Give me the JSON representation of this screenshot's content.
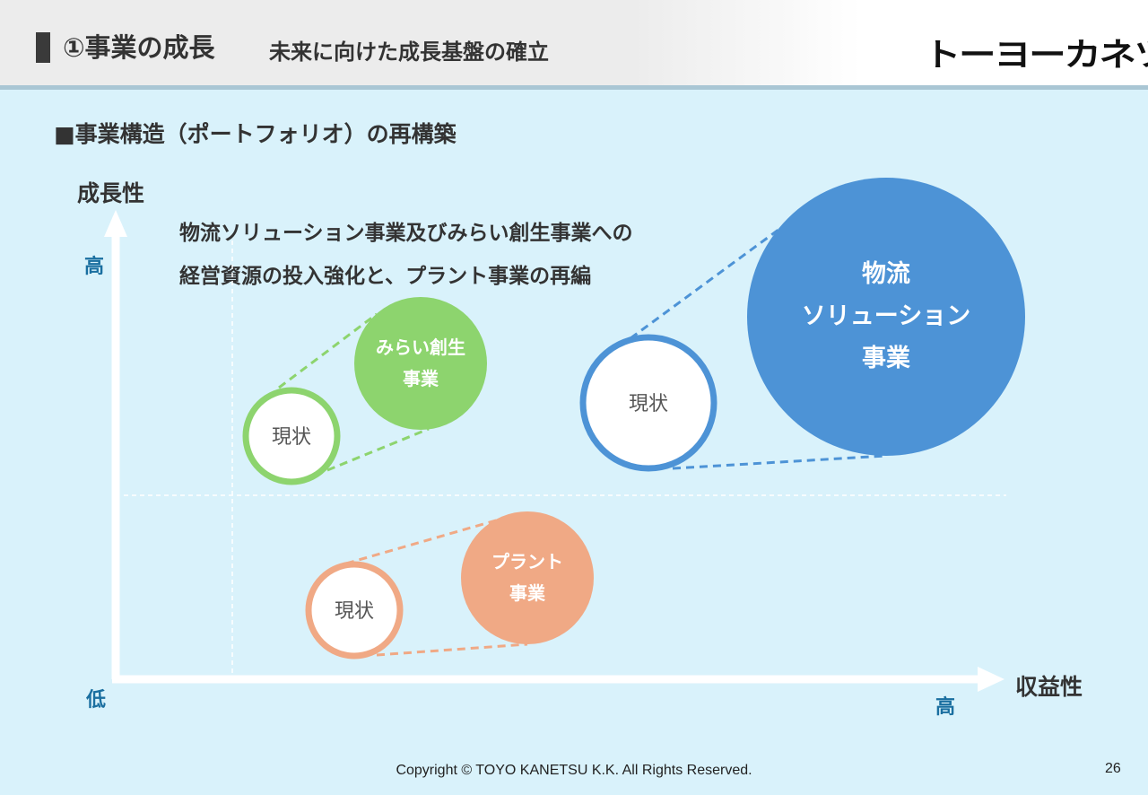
{
  "header": {
    "title": "①事業の成長",
    "subtitle": "未来に向けた成長基盤の確立",
    "logo_text": "トーヨーカネツ"
  },
  "section_heading": "■事業構造（ポートフォリオ）の再構築",
  "axes": {
    "y_title": "成長性",
    "y_high": "高",
    "x_title": "収益性",
    "x_high": "高",
    "origin_low": "低"
  },
  "message": {
    "line1": "物流ソリューション事業及びみらい創生事業への",
    "line2": "経営資源の投入強化と、プラント事業の再編"
  },
  "groups": {
    "mirai": {
      "current": "現状",
      "target": [
        "みらい創生",
        "事業"
      ],
      "color": "#8dd46e"
    },
    "logistics": {
      "current": "現状",
      "target": [
        "物流",
        "ソリューション",
        "事業"
      ],
      "color": "#4d93d6"
    },
    "plant": {
      "current": "現状",
      "target": [
        "プラント",
        "事業"
      ],
      "color": "#f0a985"
    }
  },
  "footer": {
    "copyright": "Copyright © TOYO KANETSU K.K. All Rights Reserved.",
    "page_number": "26"
  }
}
